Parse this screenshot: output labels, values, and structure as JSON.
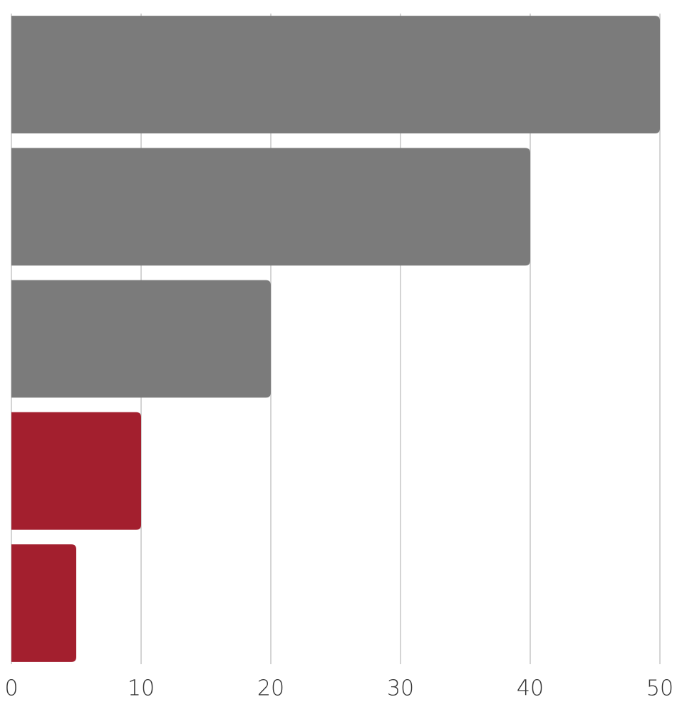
{
  "chart_data": {
    "type": "bar",
    "orientation": "horizontal",
    "categories": [
      null,
      null,
      null,
      null,
      null
    ],
    "values": [
      50,
      40,
      20,
      10,
      5
    ],
    "colors": [
      "#7b7b7b",
      "#7b7b7b",
      "#7b7b7b",
      "#a31f2e",
      "#a31f2e"
    ],
    "xlim": [
      0,
      50
    ],
    "xticks": [
      0,
      10,
      20,
      30,
      40,
      50
    ],
    "grid": true
  }
}
